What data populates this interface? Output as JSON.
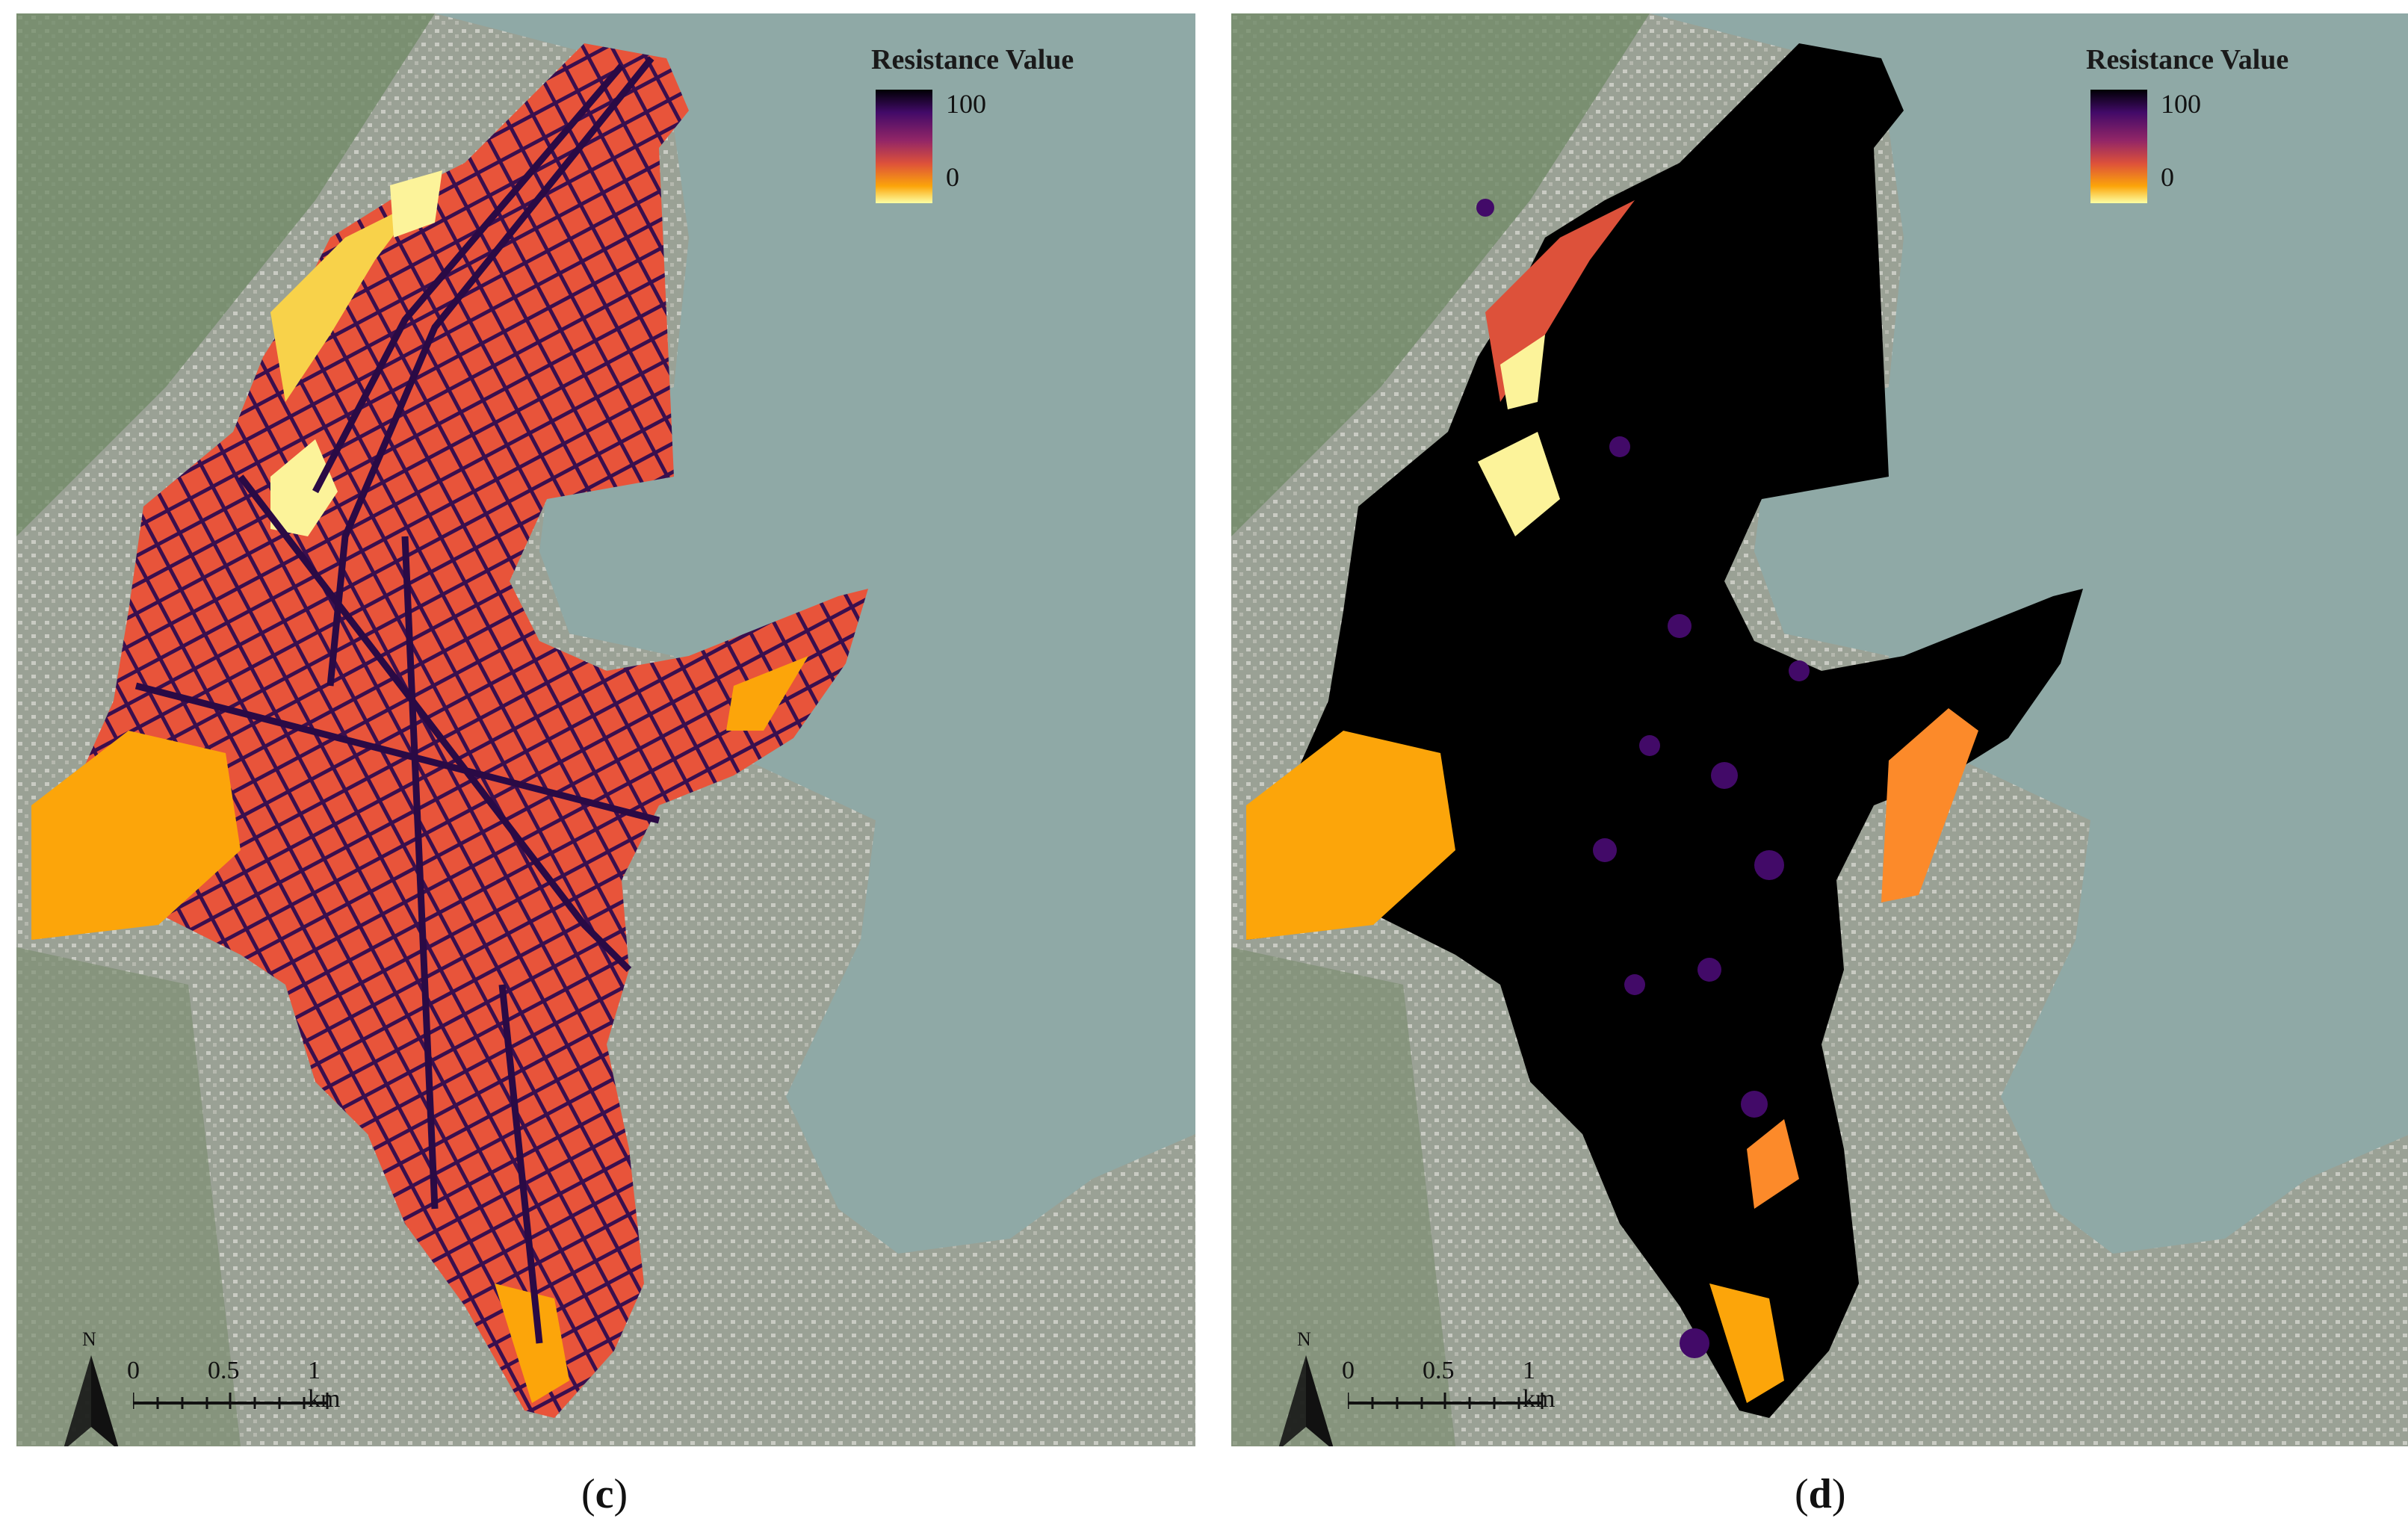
{
  "figure": {
    "panels": [
      {
        "id": "c",
        "caption": "(c)",
        "caption_letter": "c",
        "legend": {
          "title": "Resistance Value",
          "max_label": "100",
          "min_label": "0"
        },
        "north_label": "N",
        "scale_labels": [
          "0",
          "0.5",
          "1 km"
        ],
        "dominant_class": "medium resistance (orange-red) with dark road network"
      },
      {
        "id": "d",
        "caption": "(d)",
        "caption_letter": "d",
        "legend": {
          "title": "Resistance Value",
          "max_label": "100",
          "min_label": "0"
        },
        "north_label": "N",
        "scale_labels": [
          "0",
          "0.5",
          "1 km"
        ],
        "dominant_class": "high resistance (black) across urban core"
      }
    ],
    "colors": {
      "ramp": [
        "#000004",
        "#420a68",
        "#932667",
        "#dd513a",
        "#fca50a",
        "#fcffa4"
      ],
      "sea": "#8fa9a6",
      "land": "#8e998a"
    }
  }
}
